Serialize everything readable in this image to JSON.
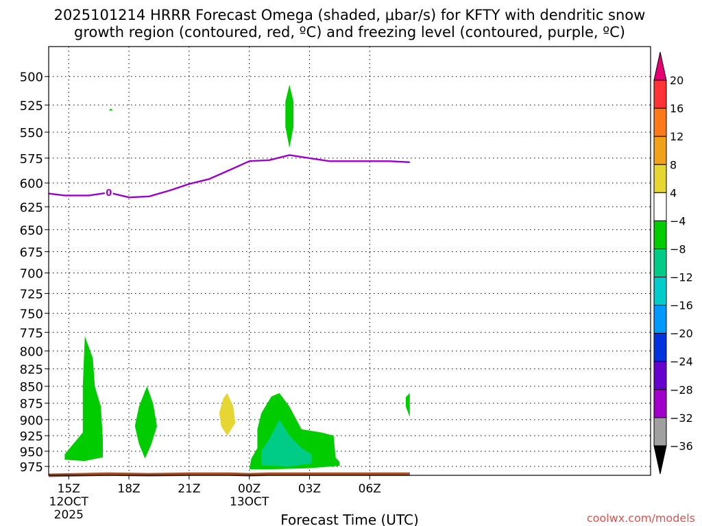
{
  "chart_data": {
    "type": "time-height cross section",
    "title_line1": "2025101214 HRRR Forecast Omega (shaded, μbar/s) for KFTY with dendritic snow",
    "title_line2": "growth region (contoured, red, ºC) and freezing level (contoured, purple, ºC)",
    "xlabel": "Forecast Time (UTC)",
    "ylabel": "",
    "watermark": "coolwx.com/models",
    "x_axis": {
      "unit": "hours since 2025-10-12 15Z",
      "range": [
        -1,
        29
      ],
      "ticks": [
        {
          "x": 0,
          "lines": [
            "15Z",
            "12OCT",
            "2025"
          ]
        },
        {
          "x": 3,
          "lines": [
            "18Z"
          ]
        },
        {
          "x": 6,
          "lines": [
            "21Z"
          ]
        },
        {
          "x": 9,
          "lines": [
            "00Z",
            "13OCT"
          ]
        },
        {
          "x": 12,
          "lines": [
            "03Z"
          ]
        },
        {
          "x": 15,
          "lines": [
            "06Z"
          ]
        }
      ]
    },
    "y_axis": {
      "unit": "hPa",
      "scale": "log",
      "inverted": true,
      "range": [
        475,
        990
      ],
      "ticks": [
        500,
        525,
        550,
        575,
        600,
        625,
        650,
        675,
        700,
        725,
        750,
        775,
        800,
        825,
        850,
        875,
        900,
        925,
        950,
        975
      ]
    },
    "grid": "dotted",
    "freezing_level": {
      "label": "0",
      "label_point": [
        2,
        610
      ],
      "points": [
        [
          -1,
          611
        ],
        [
          -0.2,
          613
        ],
        [
          1,
          613
        ],
        [
          2,
          610
        ],
        [
          3,
          615
        ],
        [
          4,
          614
        ],
        [
          5,
          608
        ],
        [
          6,
          601
        ],
        [
          7,
          596
        ],
        [
          8,
          587
        ],
        [
          9,
          578
        ],
        [
          10,
          577
        ],
        [
          11,
          572
        ],
        [
          12,
          575
        ],
        [
          13,
          578
        ],
        [
          14,
          578
        ],
        [
          15,
          578
        ],
        [
          16,
          578
        ],
        [
          17,
          579
        ]
      ]
    },
    "surface": {
      "color": "#a0522d",
      "points": [
        [
          -1,
          990
        ],
        [
          2,
          988
        ],
        [
          4,
          989
        ],
        [
          6,
          988
        ],
        [
          8,
          988
        ],
        [
          9,
          989
        ],
        [
          10,
          988
        ],
        [
          12,
          988
        ],
        [
          14,
          988
        ],
        [
          17,
          988
        ]
      ]
    },
    "omega_regions": [
      {
        "level": -8,
        "color": "#00cc00",
        "points": [
          [
            0.8,
            780
          ],
          [
            1.2,
            810
          ],
          [
            1.3,
            850
          ],
          [
            1.6,
            880
          ],
          [
            1.7,
            930
          ],
          [
            1.7,
            960
          ],
          [
            0.8,
            966
          ],
          [
            -0.2,
            964
          ],
          [
            -0.2,
            955
          ],
          [
            0.7,
            920
          ],
          [
            0.7,
            850
          ]
        ]
      },
      {
        "level": -8,
        "color": "#00cc00",
        "points": [
          [
            3.9,
            850
          ],
          [
            4.2,
            875
          ],
          [
            4.4,
            910
          ],
          [
            4.1,
            940
          ],
          [
            3.8,
            962
          ],
          [
            3.5,
            938
          ],
          [
            3.3,
            910
          ],
          [
            3.5,
            880
          ]
        ]
      },
      {
        "level": 4,
        "color": "#e6d633",
        "points": [
          [
            7.9,
            860
          ],
          [
            8.2,
            880
          ],
          [
            8.3,
            905
          ],
          [
            7.9,
            925
          ],
          [
            7.6,
            910
          ],
          [
            7.5,
            890
          ],
          [
            7.7,
            868
          ]
        ]
      },
      {
        "level": -8,
        "color": "#00cc00",
        "points": [
          [
            10.1,
            865
          ],
          [
            10.5,
            860
          ],
          [
            11.0,
            880
          ],
          [
            11.6,
            915
          ],
          [
            12.6,
            920
          ],
          [
            13.2,
            925
          ],
          [
            13.3,
            960
          ],
          [
            13.5,
            968
          ],
          [
            13.5,
            974
          ],
          [
            12.0,
            978
          ],
          [
            10.0,
            980
          ],
          [
            9.0,
            980
          ],
          [
            9.1,
            962
          ],
          [
            9.4,
            945
          ],
          [
            9.4,
            915
          ],
          [
            9.6,
            890
          ]
        ]
      },
      {
        "level": -8,
        "color": "#00cc00",
        "points": [
          [
            16.8,
            866
          ],
          [
            17,
            860
          ],
          [
            17,
            896
          ],
          [
            16.8,
            880
          ]
        ]
      },
      {
        "level": -12,
        "color": "#00cc88",
        "points": [
          [
            10.5,
            900
          ],
          [
            11.0,
            925
          ],
          [
            11.6,
            945
          ],
          [
            12.1,
            955
          ],
          [
            12.1,
            970
          ],
          [
            11.0,
            975
          ],
          [
            9.6,
            973
          ],
          [
            9.6,
            950
          ],
          [
            10.0,
            930
          ]
        ]
      },
      {
        "level": -8,
        "color": "#00cc00",
        "points": [
          [
            2.0,
            530
          ],
          [
            2.2,
            530
          ],
          [
            2.1,
            528
          ]
        ]
      },
      {
        "level": -8,
        "color": "#00cc00",
        "points": [
          [
            11.0,
            507
          ],
          [
            11.2,
            522
          ],
          [
            11.2,
            545
          ],
          [
            11.0,
            565
          ],
          [
            10.8,
            545
          ],
          [
            10.8,
            522
          ]
        ]
      }
    ],
    "colorbar": {
      "colors": [
        "#e60073",
        "#ff3333",
        "#ff7a1a",
        "#f0a21a",
        "#e6d633",
        "#ffffff",
        "#00cc00",
        "#00cc88",
        "#00cccc",
        "#0099ff",
        "#0033dd",
        "#6600cc",
        "#a000c8",
        "#a0a0a0",
        "#000000"
      ],
      "labels": [
        "20",
        "16",
        "12",
        "8",
        "4",
        "−4",
        "−8",
        "−12",
        "−16",
        "−20",
        "−24",
        "−28",
        "−32",
        "−36"
      ]
    }
  }
}
